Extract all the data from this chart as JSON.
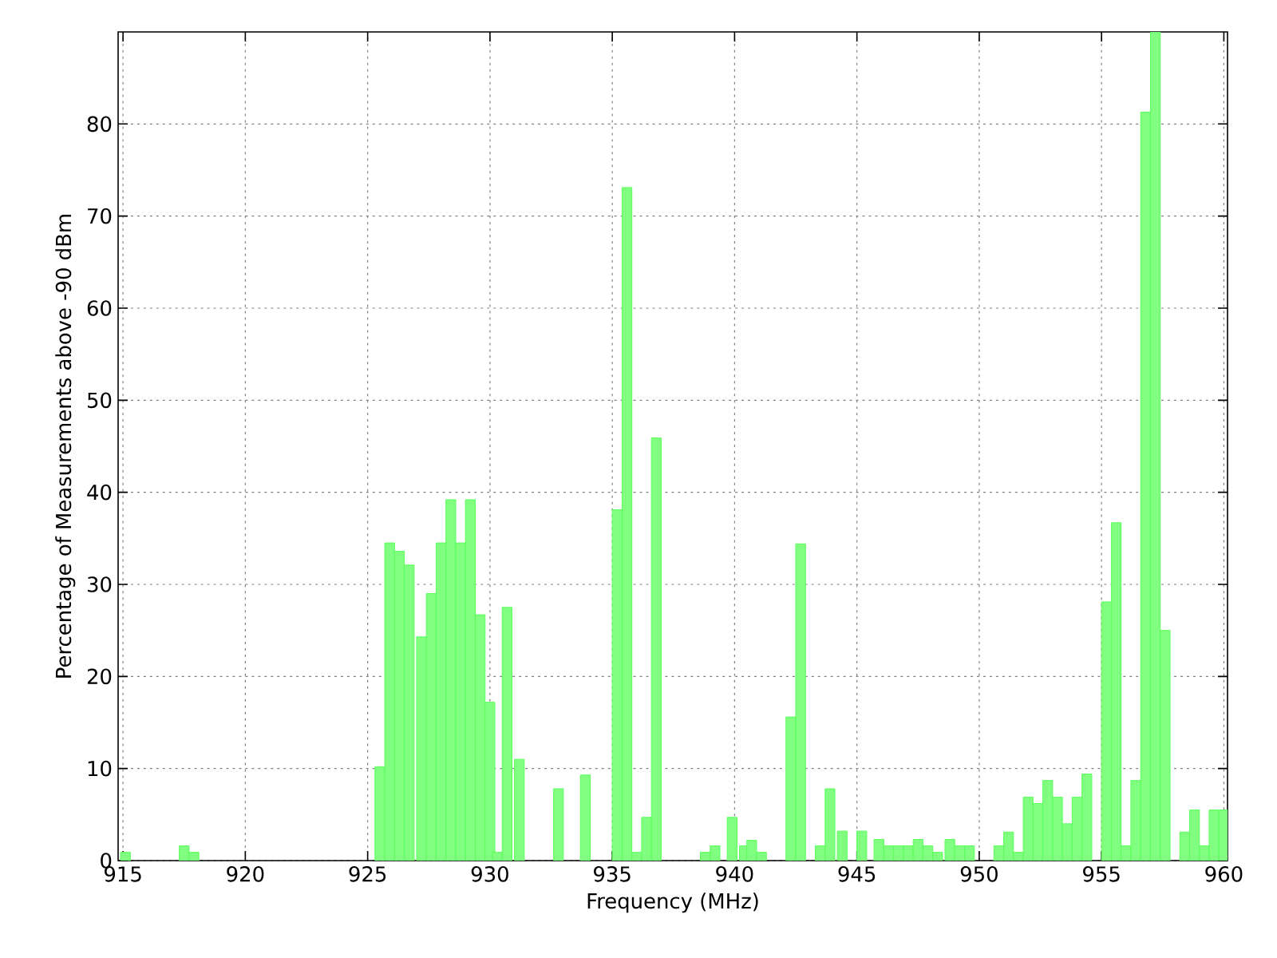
{
  "chart_data": {
    "type": "bar",
    "xlabel": "Frequency (MHz)",
    "ylabel": "Percentage of Measurements above -90 dBm",
    "x": [
      915.1,
      917.5,
      917.9,
      925.5,
      925.9,
      926.3,
      926.7,
      927.2,
      927.6,
      928.0,
      928.4,
      928.8,
      929.2,
      929.6,
      930.0,
      930.3,
      930.7,
      931.2,
      932.8,
      933.9,
      935.2,
      935.6,
      936.0,
      936.4,
      936.8,
      938.8,
      939.2,
      939.9,
      940.4,
      940.7,
      941.1,
      942.3,
      942.7,
      943.5,
      943.9,
      944.4,
      945.2,
      945.9,
      946.3,
      946.7,
      947.1,
      947.5,
      947.9,
      948.3,
      948.8,
      949.2,
      949.6,
      950.8,
      951.2,
      951.6,
      952.0,
      952.4,
      952.8,
      953.2,
      953.6,
      954.0,
      954.4,
      955.2,
      955.6,
      956.0,
      956.4,
      956.8,
      957.2,
      957.6,
      958.4,
      958.8,
      959.2,
      959.6,
      960.0
    ],
    "values": [
      0.9,
      1.6,
      0.9,
      10.2,
      34.5,
      33.6,
      32.1,
      24.3,
      29.0,
      34.5,
      39.2,
      34.5,
      39.2,
      26.7,
      17.2,
      0.9,
      27.5,
      11.0,
      7.8,
      9.3,
      38.1,
      73.1,
      0.9,
      4.7,
      45.9,
      0.9,
      1.6,
      4.7,
      1.6,
      2.2,
      0.9,
      15.6,
      34.4,
      1.6,
      7.8,
      3.2,
      3.2,
      2.3,
      1.6,
      1.6,
      1.6,
      2.3,
      1.6,
      0.9,
      2.3,
      1.6,
      1.6,
      1.6,
      3.1,
      0.9,
      6.9,
      6.2,
      8.7,
      6.9,
      4.0,
      6.9,
      9.4,
      28.1,
      36.7,
      1.6,
      8.7,
      81.3,
      90,
      25.0,
      3.1,
      5.5,
      1.6,
      5.5,
      5.5
    ],
    "color": "#80ff80",
    "xlim": [
      914.8,
      960.15
    ],
    "ylim": [
      0,
      90
    ],
    "xticks": [
      915,
      920,
      925,
      930,
      935,
      940,
      945,
      950,
      955,
      960
    ],
    "yticks": [
      0,
      10,
      20,
      30,
      40,
      50,
      60,
      70,
      80
    ],
    "grid": true
  }
}
